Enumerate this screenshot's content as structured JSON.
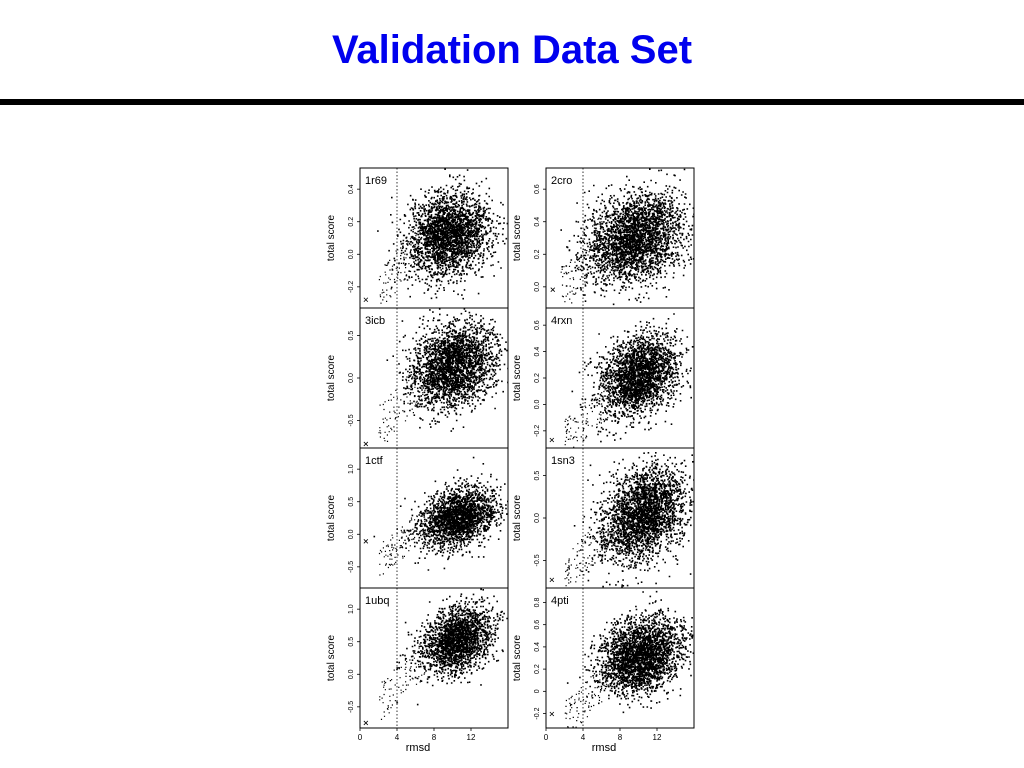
{
  "slide": {
    "title": "Validation Data Set",
    "title_color": "#0000ee",
    "rule_color": "#000000"
  },
  "chart_data": [
    {
      "type": "scatter",
      "label": "1r69",
      "xlabel": "",
      "ylabel": "total score",
      "xlim": [
        0,
        16
      ],
      "ylim": [
        -0.38,
        0.47
      ],
      "yticks": [
        "-0.2",
        "0.0",
        "0.2",
        "0.4"
      ],
      "xticks": [],
      "threshold_x": 4,
      "native": {
        "x": 0.2,
        "y": -0.33
      },
      "cloud": {
        "cx": 9.5,
        "cy": 0.07,
        "sx": 2.2,
        "sy": 0.12,
        "tilt": 0.15,
        "n": 2600
      },
      "tail": {
        "x": [
          2,
          6
        ],
        "y": [
          -0.28,
          0.0
        ],
        "n": 80
      }
    },
    {
      "type": "scatter",
      "label": "2cro",
      "xlabel": "",
      "ylabel": "total score",
      "xlim": [
        0,
        16
      ],
      "ylim": [
        -0.12,
        0.72
      ],
      "yticks": [
        "0.0",
        "0.2",
        "0.4",
        "0.6"
      ],
      "xticks": [],
      "threshold_x": 4,
      "native": {
        "x": 0.3,
        "y": -0.01
      },
      "cloud": {
        "cx": 9.5,
        "cy": 0.3,
        "sx": 2.6,
        "sy": 0.13,
        "tilt": 0.25,
        "n": 2800
      },
      "tail": {
        "x": [
          1.5,
          6
        ],
        "y": [
          -0.05,
          0.3
        ],
        "n": 90
      }
    },
    {
      "type": "scatter",
      "label": "3icb",
      "xlabel": "",
      "ylabel": "total score",
      "xlim": [
        0,
        16
      ],
      "ylim": [
        -0.6,
        0.78
      ],
      "yticks": [
        "-0.5",
        "0.0",
        "0.5"
      ],
      "xticks": [],
      "threshold_x": 4,
      "native": {
        "x": 0.2,
        "y": -0.56
      },
      "cloud": {
        "cx": 10,
        "cy": 0.22,
        "sx": 2.2,
        "sy": 0.2,
        "tilt": 0.2,
        "n": 2600
      },
      "tail": {
        "x": [
          2,
          7
        ],
        "y": [
          -0.4,
          0.1
        ],
        "n": 100
      }
    },
    {
      "type": "scatter",
      "label": "4rxn",
      "xlabel": "",
      "ylabel": "total score",
      "xlim": [
        0,
        16
      ],
      "ylim": [
        -0.33,
        0.72
      ],
      "yticks": [
        "-0.2",
        "0.0",
        "0.2",
        "0.4",
        "0.6"
      ],
      "xticks": [],
      "threshold_x": 4,
      "native": {
        "x": 0.2,
        "y": -0.27
      },
      "cloud": {
        "cx": 10,
        "cy": 0.22,
        "sx": 2.1,
        "sy": 0.14,
        "tilt": 0.3,
        "n": 2500
      },
      "tail": {
        "x": [
          2,
          7
        ],
        "y": [
          -0.25,
          0.05
        ],
        "n": 100
      }
    },
    {
      "type": "scatter",
      "label": "1ctf",
      "xlabel": "",
      "ylabel": "total score",
      "xlim": [
        0,
        16
      ],
      "ylim": [
        -0.75,
        1.5
      ],
      "yticks": [
        "-0.5",
        "0.0",
        "0.5",
        "1.0"
      ],
      "xticks": [],
      "threshold_x": 4,
      "native": {
        "x": 0.2,
        "y": 0.0
      },
      "cloud": {
        "cx": 10.5,
        "cy": 0.4,
        "sx": 2.0,
        "sy": 0.22,
        "tilt": 0.35,
        "n": 2200
      },
      "tail": {
        "x": [
          2,
          7
        ],
        "y": [
          -0.3,
          0.3
        ],
        "n": 100
      }
    },
    {
      "type": "scatter",
      "label": "1sn3",
      "xlabel": "",
      "ylabel": "total score",
      "xlim": [
        0,
        16
      ],
      "ylim": [
        -0.62,
        1.1
      ],
      "yticks": [
        "-0.5",
        "0.0",
        "0.5"
      ],
      "xticks": [],
      "threshold_x": 4,
      "native": {
        "x": 0.2,
        "y": -0.52
      },
      "cloud": {
        "cx": 10.5,
        "cy": 0.3,
        "sx": 2.3,
        "sy": 0.28,
        "tilt": 0.3,
        "n": 2700
      },
      "tail": {
        "x": [
          2,
          7
        ],
        "y": [
          -0.45,
          0.1
        ],
        "n": 100
      }
    },
    {
      "type": "scatter",
      "label": "1ubq",
      "xlabel": "rmsd",
      "ylabel": "total score",
      "xlim": [
        0,
        16
      ],
      "ylim": [
        -0.7,
        1.5
      ],
      "yticks": [
        "-0.5",
        "0.0",
        "0.5",
        "1.0"
      ],
      "xticks": [
        "0",
        "4",
        "8",
        "12"
      ],
      "threshold_x": 4,
      "native": {
        "x": 0.2,
        "y": -0.62
      },
      "cloud": {
        "cx": 10.5,
        "cy": 0.7,
        "sx": 1.9,
        "sy": 0.25,
        "tilt": 0.3,
        "n": 2100
      },
      "tail": {
        "x": [
          2,
          7
        ],
        "y": [
          -0.3,
          0.4
        ],
        "n": 100
      }
    },
    {
      "type": "scatter",
      "label": "4pti",
      "xlabel": "rmsd",
      "ylabel": "total score",
      "xlim": [
        0,
        16
      ],
      "ylim": [
        -0.28,
        1.02
      ],
      "yticks": [
        "-0.2",
        "0",
        "0.2",
        "0.4",
        "0.6",
        "0.8"
      ],
      "xticks": [
        "0",
        "4",
        "8",
        "12"
      ],
      "threshold_x": 4,
      "native": {
        "x": 0.2,
        "y": -0.15
      },
      "cloud": {
        "cx": 10.2,
        "cy": 0.4,
        "sx": 2.3,
        "sy": 0.17,
        "tilt": 0.25,
        "n": 2700
      },
      "tail": {
        "x": [
          2,
          7
        ],
        "y": [
          -0.2,
          0.2
        ],
        "n": 100
      }
    }
  ]
}
